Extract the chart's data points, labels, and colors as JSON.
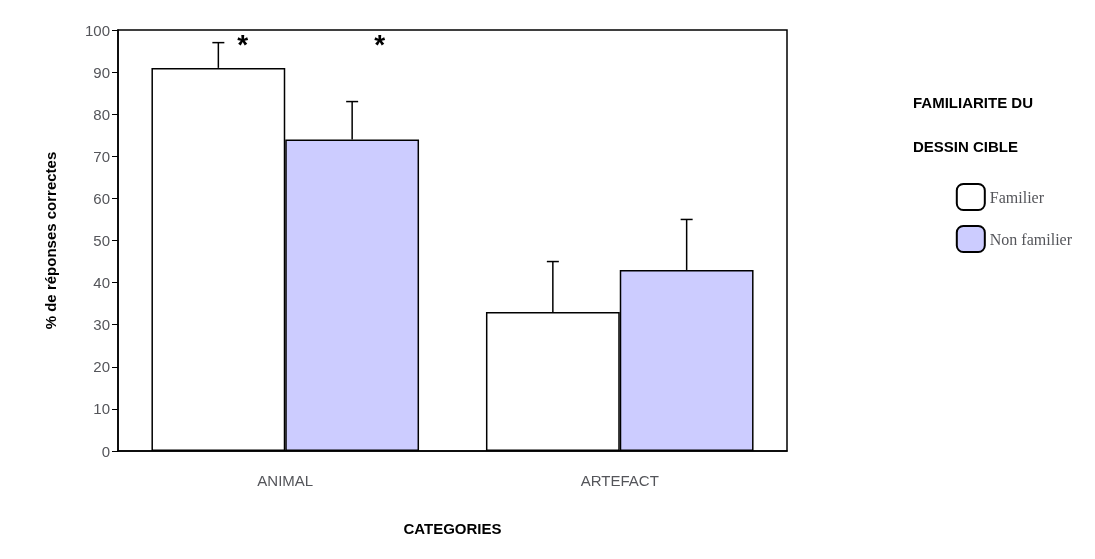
{
  "chart_data": {
    "type": "bar",
    "xlabel": "CATEGORIES",
    "ylabel": "% de réponses correctes",
    "legend_title": "FAMILIARITE DU DESSIN CIBLE",
    "categories": [
      "ANIMAL",
      "ARTEFACT"
    ],
    "series": [
      {
        "name": "Familier",
        "color": "#ffffff",
        "values": [
          91,
          33
        ],
        "errors": [
          6,
          12
        ]
      },
      {
        "name": "Non familier",
        "color": "#ccccff",
        "values": [
          74,
          43
        ],
        "errors": [
          9,
          12
        ]
      }
    ],
    "ylim": [
      0,
      100
    ],
    "yticks": [
      0,
      10,
      20,
      30,
      40,
      50,
      60,
      70,
      80,
      90,
      100
    ],
    "grid": false,
    "legend": "right",
    "annotations": [
      "*",
      "*"
    ]
  }
}
